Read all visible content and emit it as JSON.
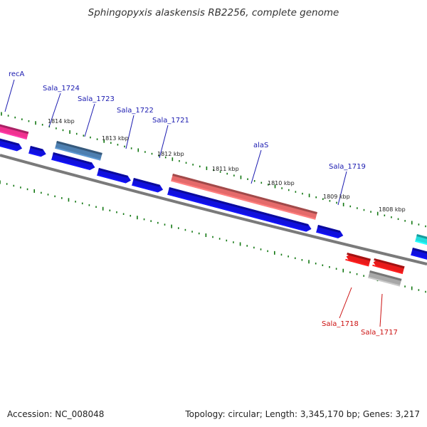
{
  "title": "Sphingopyxis alaskensis RB2256, complete genome",
  "footer": {
    "accession": "Accession: NC_008048",
    "summary": "Topology: circular; Length: 3,345,170 bp; Genes: 3,217"
  },
  "ruler": {
    "labels": [
      "1814 kbp",
      "1813 kbp",
      "1812 kbp",
      "1811 kbp",
      "1810 kbp",
      "1809 kbp",
      "1808 kbp"
    ]
  },
  "colors": {
    "forward_gene": "#f0318f",
    "forward_highlight": "#4d7fb0",
    "rrna_like": "#e56a6a",
    "blue_gene": "#1010dd",
    "reverse_gene": "#e81a1a",
    "reverse_grey": "#a8a8a8",
    "cyan_gene": "#22dddd",
    "backbone": "#7a7a7a",
    "ticks": "#117711",
    "label_forward": "#1a1ab0",
    "label_reverse": "#cc1111"
  },
  "gene_labels": {
    "forward": [
      "recA",
      "Sala_1724",
      "Sala_1723",
      "Sala_1722",
      "Sala_1721",
      "alaS",
      "Sala_1719"
    ],
    "reverse": [
      "Sala_1718",
      "Sala_1717"
    ]
  }
}
